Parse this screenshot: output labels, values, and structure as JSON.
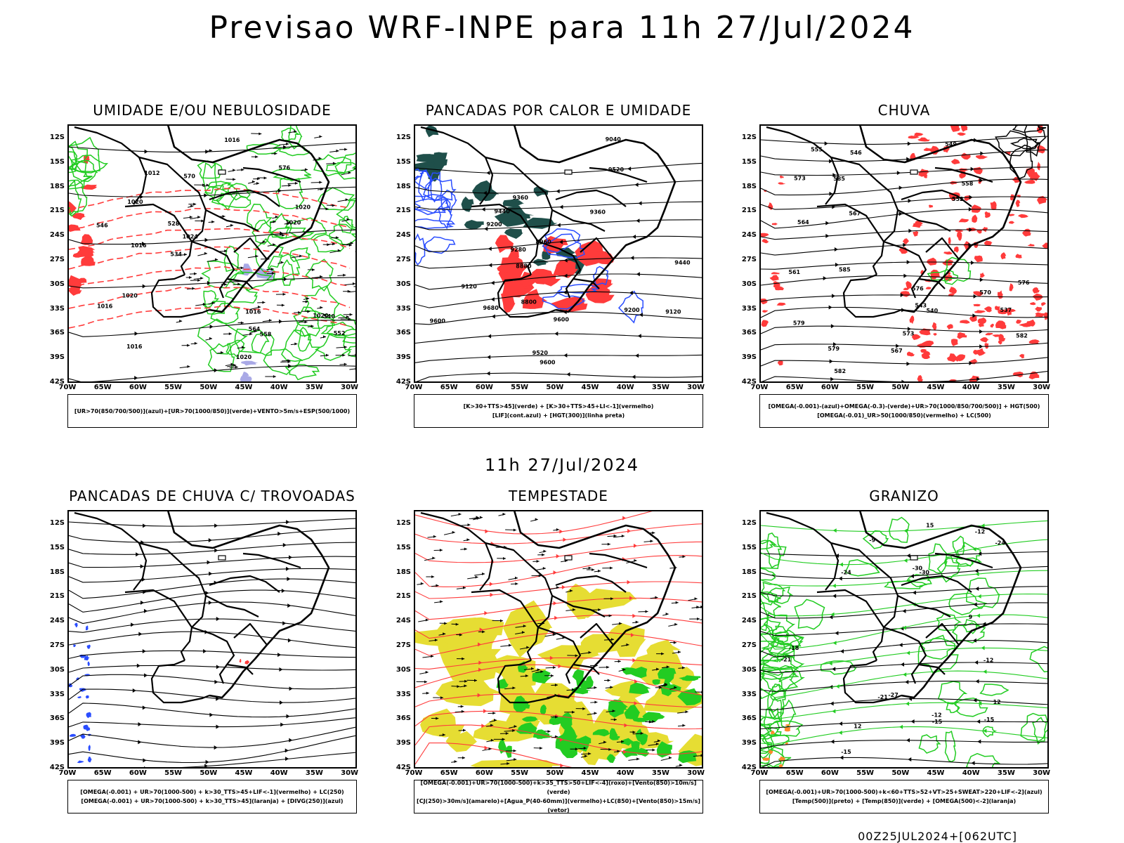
{
  "header": {
    "title": "Previsao WRF-INPE  para 11h 27/Jul/2024",
    "subtitle": "11h 27/Jul/2024",
    "footer": "00Z25JUL2024+[062UTC]"
  },
  "axes": {
    "lat_labels": [
      "12S",
      "15S",
      "18S",
      "21S",
      "24S",
      "27S",
      "30S",
      "33S",
      "36S",
      "39S",
      "42S"
    ],
    "lon_labels": [
      "70W",
      "65W",
      "60W",
      "55W",
      "50W",
      "45W",
      "40W",
      "35W",
      "30W"
    ]
  },
  "panels": [
    {
      "title": "UMIDADE E/OU NEBULOSIDADE",
      "legend": [
        "[UR>70(850/700/500)](azul)+[UR>70(1000/850)](verde)+VENTO>5m/s+ESP(500/1000)"
      ],
      "labels": [
        "1016",
        "1016",
        "1016",
        "1020",
        "1020",
        "1020",
        "1024",
        "1016",
        "1016",
        "1020",
        "1020",
        "1012",
        "1020",
        "576",
        "570",
        "564",
        "558",
        "552",
        "546",
        "540",
        "534",
        "528"
      ]
    },
    {
      "title": "PANCADAS POR CALOR E UMIDADE",
      "legend": [
        "[K>30+TTS>45](verde) + [K>30+TTS>45+LI<-1](vermelho)",
        "[LIF](cont.azul) + [HGT(300)](linha preta)"
      ],
      "labels": [
        "9680",
        "9600",
        "9600",
        "9520",
        "9520",
        "9600",
        "9440",
        "9440",
        "9360",
        "9360",
        "9280",
        "9200",
        "9120",
        "9120",
        "9200",
        "9040",
        "8960",
        "8880",
        "8800"
      ]
    },
    {
      "title": "CHUVA",
      "legend": [
        "[OMEGA(-0.001)-(azul)+OMEGA(-0.3)-(verde)+UR>70(1000/850/700/500)] + HGT(500)",
        "[OMEGA(-0.01)_UR>50(1000/850)(vermelho) + LC(500)"
      ],
      "labels": [
        "585",
        "585",
        "582",
        "582",
        "579",
        "579",
        "576",
        "576",
        "573",
        "573",
        "570",
        "567",
        "567",
        "564",
        "561",
        "558",
        "555",
        "552",
        "549",
        "546",
        "543",
        "540",
        "537"
      ]
    },
    {
      "title": "PANCADAS DE CHUVA C/ TROVOADAS",
      "legend": [
        "[OMEGA(-0.001) + UR>70(1000-500) + k>30_TTS>45+LIF<-1](vermelho) + LC(250)",
        "[OMEGA(-0.001) + UR>70(1000-500) + k>30_TTS>45](laranja) + [DIVG(250)](azul)"
      ],
      "labels": []
    },
    {
      "title": "TEMPESTADE",
      "legend": [
        "[OMEGA(-0.001)+UR>70(1000-500)+k>35_TTS>50+LIF<-4](roxo)+[Vento(850)>10m/s](verde)",
        "[CJ(250)>30m/s](amarelo)+[Agua_P(40-60mm)](vermelho)+LC(850)+[Vento(850)>15m/s](vetor)"
      ],
      "labels": []
    },
    {
      "title": "GRANIZO",
      "legend": [
        "[OMEGA(-0.001)+UR>70(1000-500)+k<60+TTS>52+VT>25+SWEAT>220+LIF<-2](azul)",
        "[Temp(500)](preto) + [Temp(850)](verde) + [OMEGA(500)<-2](laranja)"
      ],
      "labels": [
        "-9",
        "-12",
        "-12",
        "-12",
        "-15",
        "-15",
        "-15",
        "-18",
        "-21",
        "-21",
        "-24",
        "-24",
        "-27",
        "-30",
        "-30",
        "12",
        "12",
        "9",
        "15"
      ]
    }
  ],
  "colors": {
    "red": "#ff3b3b",
    "green": "#22cc22",
    "blue": "#2a4dff",
    "yellow": "#e6dd33",
    "darkgreen": "#1f4f4a",
    "lavender": "#a9a9e6",
    "orange": "#ff8a2a"
  }
}
